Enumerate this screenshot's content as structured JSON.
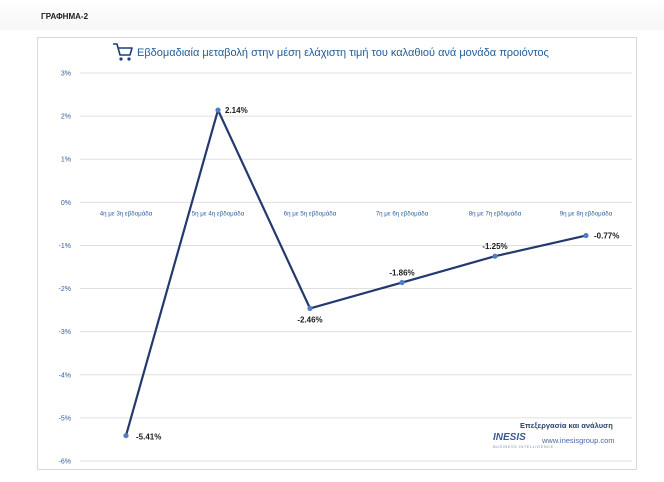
{
  "page": {
    "label": "ΓΡΑΦΗΜΑ-2"
  },
  "chart_data": {
    "type": "line",
    "title": "Εβδομαδιαία μεταβολή  στην μέση ελάχιστη τιμή του καλαθιού ανά μονάδα προιόντος",
    "categories": [
      "4η με 3η εβδομάδα",
      "5η με 4η εβδομάδα",
      "6η με 5η εβδομάδα",
      "7η με 6η εβδομάδα",
      "8η με 7η εβδομάδα",
      "9η με 8η εβδομάδα"
    ],
    "series": [
      {
        "values": [
          -5.41,
          2.14,
          -2.46,
          -1.86,
          -1.25,
          -0.77
        ]
      }
    ],
    "data_labels": [
      "-5.41%",
      "2.14%",
      "-2.46%",
      "-1.86%",
      "-1.25%",
      "-0.77%"
    ],
    "ylim": [
      -6,
      3
    ],
    "yticks": [
      3,
      2,
      1,
      0,
      -1,
      -2,
      -3,
      -4,
      -5,
      -6
    ],
    "ytick_labels": [
      "3%",
      "2%",
      "1%",
      "0%",
      "-1%",
      "-2%",
      "-3%",
      "-4%",
      "-5%",
      "-6%"
    ],
    "grid": true,
    "line_color": "#243a6e",
    "marker_color": "#4f7fc1",
    "grid_color": "#e0e0e0"
  },
  "credit": {
    "text": "Επεξεργασία και ανάλυση",
    "logo": "INESIS",
    "logo_sub": "BUSINESS INTELLIGENCE",
    "url": "www.inesisgroup.com"
  },
  "icons": {
    "title_icon": "shopping-cart-icon"
  }
}
